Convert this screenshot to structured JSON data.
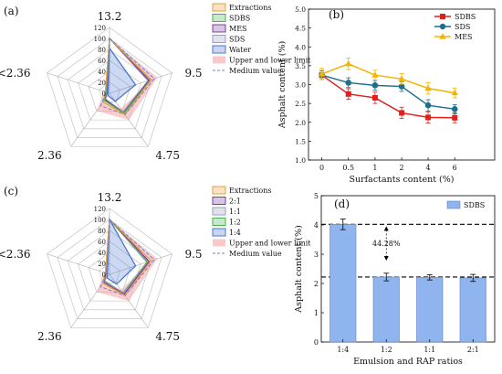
{
  "chart_data": [
    {
      "panel": "(a)",
      "type": "radar",
      "axes": [
        "13.2",
        "9.5",
        "4.75",
        "2.36",
        "<2.36"
      ],
      "r_ticks": [
        0,
        20,
        40,
        60,
        80,
        100,
        120
      ],
      "legend": [
        "Extractions",
        "SDBS",
        "MES",
        "SDS",
        "Water",
        "Upper and lower limit",
        "Medium value"
      ],
      "series": [
        {
          "name": "Extractions",
          "color": "#e8a13c",
          "values": [
            100,
            80,
            48,
            20,
            8
          ]
        },
        {
          "name": "SDBS",
          "color": "#4caf50",
          "values": [
            100,
            79,
            45,
            16,
            6
          ]
        },
        {
          "name": "MES",
          "color": "#7b3fa0",
          "values": [
            100,
            76,
            44,
            14,
            5
          ]
        },
        {
          "name": "SDS",
          "color": "#9aa0b8",
          "values": [
            100,
            74,
            42,
            13,
            5
          ]
        },
        {
          "name": "Water",
          "color": "#4a78d0",
          "values": [
            82,
            50,
            18,
            5,
            3
          ]
        }
      ],
      "upper": [
        100,
        92,
        60,
        40,
        10
      ],
      "lower": [
        100,
        80,
        35,
        15,
        3
      ],
      "medium": [
        100,
        86,
        48,
        28,
        6
      ]
    },
    {
      "panel": "(b)",
      "type": "line",
      "x": [
        "0",
        "0.5",
        "1",
        "2",
        "4",
        "6"
      ],
      "xlabel": "Surfactants content (%)",
      "ylabel": "Asphalt content (%)",
      "ylim": [
        1.0,
        5.0
      ],
      "yticks": [
        "1.0",
        "1.5",
        "2.0",
        "2.5",
        "3.0",
        "3.5",
        "4.0",
        "4.5",
        "5.0"
      ],
      "series": [
        {
          "name": "SDBS",
          "color": "#e0201a",
          "marker": "square",
          "values": [
            3.25,
            2.75,
            2.65,
            2.25,
            2.13,
            2.12
          ],
          "err": [
            0.12,
            0.14,
            0.15,
            0.15,
            0.15,
            0.13
          ]
        },
        {
          "name": "SDS",
          "color": "#1e6f8a",
          "marker": "circle",
          "values": [
            3.25,
            3.05,
            2.98,
            2.95,
            2.45,
            2.35
          ],
          "err": [
            0.12,
            0.13,
            0.13,
            0.13,
            0.15,
            0.12
          ]
        },
        {
          "name": "MES",
          "color": "#f2b400",
          "marker": "triangle",
          "values": [
            3.28,
            3.55,
            3.25,
            3.15,
            2.9,
            2.78
          ],
          "err": [
            0.15,
            0.15,
            0.13,
            0.14,
            0.15,
            0.13
          ]
        }
      ]
    },
    {
      "panel": "(c)",
      "type": "radar",
      "axes": [
        "13.2",
        "9.5",
        "4.75",
        "2.36",
        "<2.36"
      ],
      "r_ticks": [
        0,
        20,
        40,
        60,
        80,
        100,
        120
      ],
      "legend": [
        "Extractions",
        "2:1",
        "1:1",
        "1:2",
        "1:4",
        "Upper and lower limit",
        "Medium value"
      ],
      "series": [
        {
          "name": "Extractions",
          "color": "#e8a13c",
          "values": [
            100,
            80,
            48,
            20,
            8
          ]
        },
        {
          "name": "2:1",
          "color": "#7b3fa0",
          "values": [
            100,
            76,
            45,
            18,
            7
          ]
        },
        {
          "name": "1:1",
          "color": "#9aa0b8",
          "values": [
            100,
            74,
            43,
            16,
            6
          ]
        },
        {
          "name": "1:2",
          "color": "#4caf50",
          "values": [
            100,
            72,
            42,
            15,
            6
          ]
        },
        {
          "name": "1:4",
          "color": "#4a78d0",
          "values": [
            100,
            50,
            22,
            8,
            4
          ]
        }
      ],
      "upper": [
        100,
        92,
        60,
        40,
        10
      ],
      "lower": [
        100,
        80,
        35,
        15,
        3
      ],
      "medium": [
        100,
        86,
        48,
        28,
        6
      ]
    },
    {
      "panel": "(d)",
      "type": "bar",
      "categories": [
        "1:4",
        "1:2",
        "1:1",
        "2:1"
      ],
      "values": [
        4.02,
        2.22,
        2.21,
        2.19
      ],
      "err": [
        0.18,
        0.13,
        0.09,
        0.12
      ],
      "legend": "SDBS",
      "color": "#8fb4ee",
      "xlabel": "Emulsion and RAP ratios",
      "ylabel": "Asphalt content (%)",
      "ylim": [
        0,
        5
      ],
      "yticks": [
        "0",
        "1",
        "2",
        "3",
        "4",
        "5"
      ],
      "annotation": "44.28%",
      "ref_lines": [
        4.02,
        2.22
      ]
    }
  ]
}
